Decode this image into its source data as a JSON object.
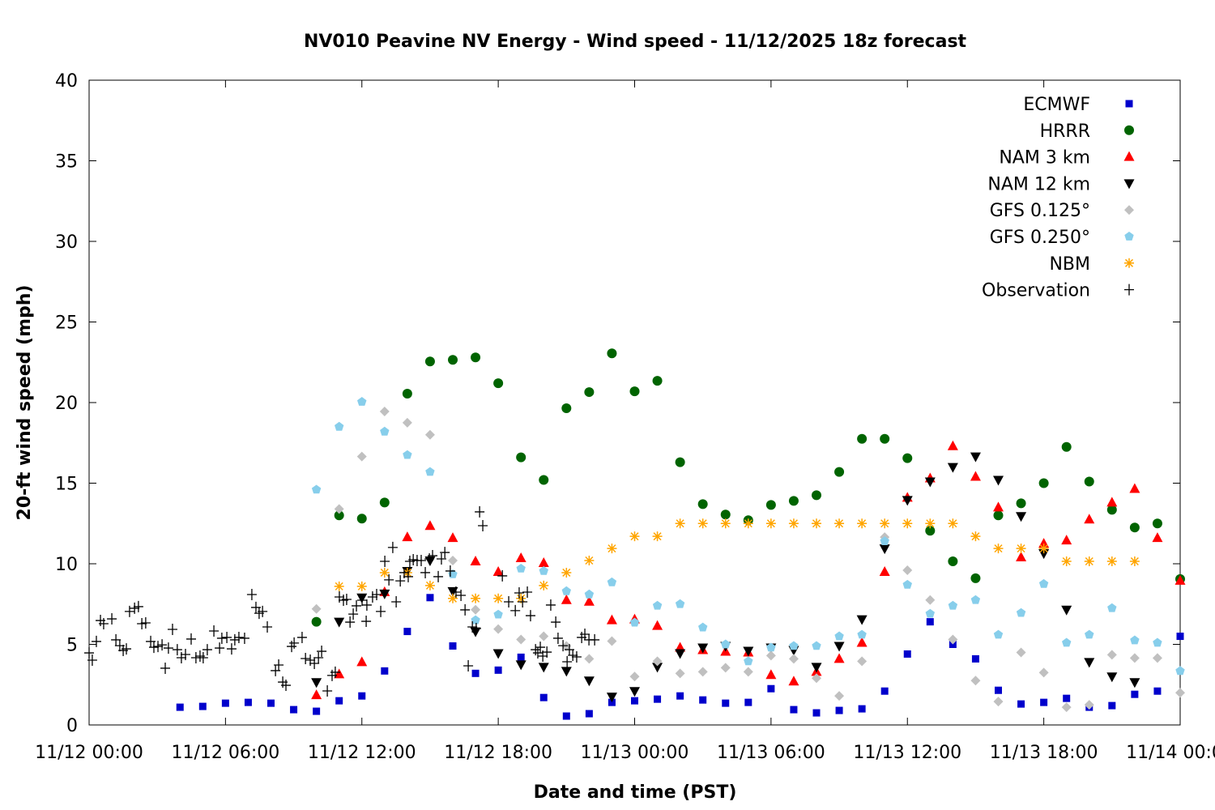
{
  "chart_data": {
    "type": "scatter",
    "title": "NV010 Peavine NV Energy - Wind speed - 11/12/2025 18z forecast",
    "xlabel": "Date and time (PST)",
    "ylabel": "20-ft wind speed (mph)",
    "x_unit": "hours since 11/12 00:00 PST",
    "xlim": [
      0,
      48
    ],
    "ylim": [
      0,
      40
    ],
    "xticks": [
      {
        "value": 0,
        "label": "11/12 00:00"
      },
      {
        "value": 6,
        "label": "11/12 06:00"
      },
      {
        "value": 12,
        "label": "11/12 12:00"
      },
      {
        "value": 18,
        "label": "11/12 18:00"
      },
      {
        "value": 24,
        "label": "11/13 00:00"
      },
      {
        "value": 30,
        "label": "11/13 06:00"
      },
      {
        "value": 36,
        "label": "11/13 12:00"
      },
      {
        "value": 42,
        "label": "11/13 18:00"
      },
      {
        "value": 48,
        "label": "11/14 00:00"
      }
    ],
    "yticks": [
      {
        "value": 0,
        "label": "0"
      },
      {
        "value": 5,
        "label": "5"
      },
      {
        "value": 10,
        "label": "10"
      },
      {
        "value": 15,
        "label": "15"
      },
      {
        "value": 20,
        "label": "20"
      },
      {
        "value": 25,
        "label": "25"
      },
      {
        "value": 30,
        "label": "30"
      },
      {
        "value": 35,
        "label": "35"
      },
      {
        "value": 40,
        "label": "40"
      }
    ],
    "grid": false,
    "legend_position": "top-right",
    "series": [
      {
        "name": "ECMWF",
        "color": "#0000cc",
        "marker": "square",
        "start_hour": 4,
        "values": [
          1.1,
          1.15,
          1.35,
          1.4,
          1.35,
          0.95,
          0.85,
          1.5,
          1.8,
          3.35,
          5.8,
          7.9,
          4.9,
          3.2,
          3.4,
          4.2,
          1.7,
          0.55,
          0.7,
          1.4,
          1.5,
          1.6,
          1.8,
          1.55,
          1.35,
          1.4,
          2.25,
          0.95,
          0.75,
          0.9,
          1.0,
          2.1,
          4.4,
          6.4,
          5.0,
          4.1,
          2.15,
          1.3,
          1.4,
          1.65,
          1.1,
          1.2,
          1.9,
          2.1,
          5.5
        ]
      },
      {
        "name": "HRRR",
        "color": "#006400",
        "marker": "circle",
        "start_hour": 10,
        "values": [
          6.4,
          13.0,
          12.8,
          13.8,
          20.55,
          22.55,
          22.65,
          22.8,
          21.2,
          16.6,
          15.2,
          19.65,
          20.65,
          23.05,
          20.7,
          21.35,
          16.3,
          13.7,
          13.05,
          12.7,
          13.65,
          13.9,
          14.25,
          15.7,
          17.75,
          17.75,
          16.55,
          12.05,
          10.15,
          9.1,
          13.0,
          13.75,
          15.0,
          17.25,
          15.1,
          13.35,
          12.25,
          12.5,
          9.05
        ]
      },
      {
        "name": "NAM 3 km",
        "color": "#ff0000",
        "marker": "triangle-up",
        "start_hour": 10,
        "values": [
          1.85,
          3.15,
          3.9,
          8.25,
          11.65,
          12.35,
          11.6,
          10.15,
          9.5,
          10.35,
          10.05,
          7.75,
          7.65,
          6.5,
          6.55,
          6.15,
          4.8,
          4.65,
          4.55,
          4.5,
          3.1,
          2.7,
          3.3,
          4.1,
          5.1,
          9.5,
          14.1,
          15.3,
          17.3,
          15.4,
          13.5,
          10.4,
          11.25,
          11.45,
          12.75,
          13.8,
          14.65,
          11.6,
          8.95
        ]
      },
      {
        "name": "NAM 12 km",
        "color": "#000000",
        "marker": "triangle-down",
        "start_hour": 10,
        "values": [
          2.65,
          6.4,
          7.9,
          8.15,
          9.55,
          10.2,
          8.3,
          5.8,
          4.45,
          3.75,
          3.6,
          3.35,
          2.75,
          1.75,
          2.1,
          3.6,
          4.45,
          4.8,
          4.9,
          4.6,
          4.8,
          4.65,
          3.6,
          4.9,
          6.55,
          10.95,
          13.95,
          15.1,
          16.0,
          16.65,
          15.2,
          12.95,
          10.65,
          7.15,
          3.9,
          3.0,
          2.65
        ]
      },
      {
        "name": "GFS 0.125°",
        "color": "#c0c0c0",
        "marker": "diamond",
        "start_hour": 10,
        "values": [
          7.2,
          13.4,
          16.65,
          19.45,
          18.75,
          18.0,
          10.2,
          7.15,
          5.95,
          5.3,
          5.5,
          4.9,
          4.1,
          5.2,
          3.0,
          3.95,
          3.2,
          3.3,
          3.55,
          3.3,
          4.3,
          4.1,
          2.9,
          1.8,
          3.95,
          11.65,
          9.6,
          7.75,
          5.3,
          2.75,
          1.45,
          4.5,
          3.25,
          1.1,
          1.25,
          4.35,
          4.15,
          4.15,
          2.0
        ]
      },
      {
        "name": "GFS 0.250°",
        "color": "#87ceeb",
        "marker": "pentagon",
        "start_hour": 10,
        "values": [
          14.6,
          18.5,
          20.05,
          18.2,
          16.75,
          15.7,
          9.35,
          6.5,
          6.85,
          9.7,
          9.55,
          8.3,
          8.1,
          8.85,
          6.35,
          7.4,
          7.5,
          6.05,
          5.0,
          3.95,
          4.8,
          4.9,
          4.9,
          5.5,
          5.6,
          11.4,
          8.7,
          6.9,
          7.4,
          7.75,
          5.6,
          6.95,
          8.75,
          5.1,
          5.6,
          7.25,
          5.25,
          5.1,
          3.35
        ]
      },
      {
        "name": "NBM",
        "color": "#ffa500",
        "marker": "asterisk",
        "start_hour": 11,
        "values": [
          8.6,
          8.6,
          9.45,
          9.45,
          8.65,
          7.85,
          7.85,
          7.85,
          7.85,
          8.65,
          9.45,
          10.2,
          10.95,
          11.7,
          11.7,
          12.5,
          12.5,
          12.5,
          12.5,
          12.5,
          12.5,
          12.5,
          12.5,
          12.5,
          12.5,
          12.5,
          12.5,
          12.5,
          11.7,
          10.95,
          10.95,
          10.95,
          10.15,
          10.15,
          10.15,
          10.15
        ]
      },
      {
        "name": "Observation",
        "color": "#000000",
        "marker": "plus",
        "points": [
          [
            0.0,
            4.47
          ],
          [
            0.14,
            4.02
          ],
          [
            0.32,
            5.18
          ],
          [
            0.5,
            6.48
          ],
          [
            0.64,
            6.28
          ],
          [
            1.0,
            6.58
          ],
          [
            1.18,
            5.28
          ],
          [
            1.35,
            4.92
          ],
          [
            1.5,
            4.62
          ],
          [
            1.64,
            4.72
          ],
          [
            1.78,
            7.04
          ],
          [
            2.0,
            7.24
          ],
          [
            2.17,
            7.34
          ],
          [
            2.32,
            6.28
          ],
          [
            2.49,
            6.33
          ],
          [
            2.71,
            5.18
          ],
          [
            2.85,
            4.82
          ],
          [
            3.03,
            4.87
          ],
          [
            3.21,
            4.97
          ],
          [
            3.35,
            3.52
          ],
          [
            3.49,
            4.77
          ],
          [
            3.67,
            5.93
          ],
          [
            3.88,
            4.67
          ],
          [
            4.06,
            4.17
          ],
          [
            4.24,
            4.37
          ],
          [
            4.49,
            5.33
          ],
          [
            4.7,
            4.17
          ],
          [
            4.88,
            4.27
          ],
          [
            5.02,
            4.17
          ],
          [
            5.2,
            4.67
          ],
          [
            5.49,
            5.83
          ],
          [
            5.74,
            4.77
          ],
          [
            5.84,
            5.38
          ],
          [
            6.06,
            5.43
          ],
          [
            6.27,
            4.72
          ],
          [
            6.41,
            5.28
          ],
          [
            6.59,
            5.43
          ],
          [
            6.84,
            5.38
          ],
          [
            7.16,
            8.09
          ],
          [
            7.34,
            7.29
          ],
          [
            7.48,
            6.93
          ],
          [
            7.63,
            7.04
          ],
          [
            7.84,
            6.08
          ],
          [
            8.2,
            3.37
          ],
          [
            8.34,
            3.72
          ],
          [
            8.52,
            2.66
          ],
          [
            8.66,
            2.46
          ],
          [
            8.91,
            4.87
          ],
          [
            9.02,
            5.08
          ],
          [
            9.37,
            5.43
          ],
          [
            9.52,
            4.12
          ],
          [
            9.73,
            4.02
          ],
          [
            9.91,
            3.82
          ],
          [
            10.09,
            4.17
          ],
          [
            10.23,
            4.57
          ],
          [
            10.48,
            2.11
          ],
          [
            10.69,
            3.07
          ],
          [
            10.83,
            3.27
          ],
          [
            11.01,
            7.94
          ],
          [
            11.19,
            7.74
          ],
          [
            11.33,
            7.79
          ],
          [
            11.48,
            6.38
          ],
          [
            11.62,
            6.88
          ],
          [
            11.76,
            7.39
          ],
          [
            12.01,
            7.74
          ],
          [
            12.19,
            6.43
          ],
          [
            12.22,
            7.44
          ],
          [
            12.47,
            7.94
          ],
          [
            12.65,
            8.09
          ],
          [
            12.83,
            7.04
          ],
          [
            13.01,
            10.15
          ],
          [
            13.19,
            9.0
          ],
          [
            13.36,
            11.01
          ],
          [
            13.51,
            7.64
          ],
          [
            13.69,
            8.94
          ],
          [
            13.86,
            9.45
          ],
          [
            14.04,
            9.2
          ],
          [
            14.11,
            10.15
          ],
          [
            14.26,
            10.25
          ],
          [
            14.43,
            10.2
          ],
          [
            14.61,
            10.2
          ],
          [
            14.79,
            9.45
          ],
          [
            14.97,
            10.3
          ],
          [
            15.11,
            10.5
          ],
          [
            15.36,
            9.2
          ],
          [
            15.5,
            10.3
          ],
          [
            15.65,
            10.7
          ],
          [
            15.89,
            9.55
          ],
          [
            16.14,
            8.24
          ],
          [
            16.36,
            8.04
          ],
          [
            16.54,
            7.14
          ],
          [
            16.68,
            3.67
          ],
          [
            16.86,
            6.08
          ],
          [
            17.03,
            5.98
          ],
          [
            17.18,
            13.22
          ],
          [
            17.32,
            12.36
          ],
          [
            18.18,
            9.25
          ],
          [
            18.46,
            7.64
          ],
          [
            18.75,
            7.09
          ],
          [
            18.92,
            8.19
          ],
          [
            19.07,
            7.64
          ],
          [
            19.28,
            8.24
          ],
          [
            19.42,
            6.78
          ],
          [
            19.64,
            4.67
          ],
          [
            19.74,
            4.47
          ],
          [
            19.85,
            4.82
          ],
          [
            19.96,
            4.27
          ],
          [
            20.14,
            4.52
          ],
          [
            20.31,
            7.44
          ],
          [
            20.53,
            6.38
          ],
          [
            20.63,
            5.38
          ],
          [
            20.85,
            4.92
          ],
          [
            21.03,
            3.92
          ],
          [
            21.13,
            4.67
          ],
          [
            21.28,
            4.32
          ],
          [
            21.45,
            4.22
          ],
          [
            21.67,
            5.43
          ],
          [
            21.81,
            5.63
          ],
          [
            21.99,
            5.28
          ],
          [
            22.24,
            5.28
          ]
        ]
      }
    ]
  }
}
